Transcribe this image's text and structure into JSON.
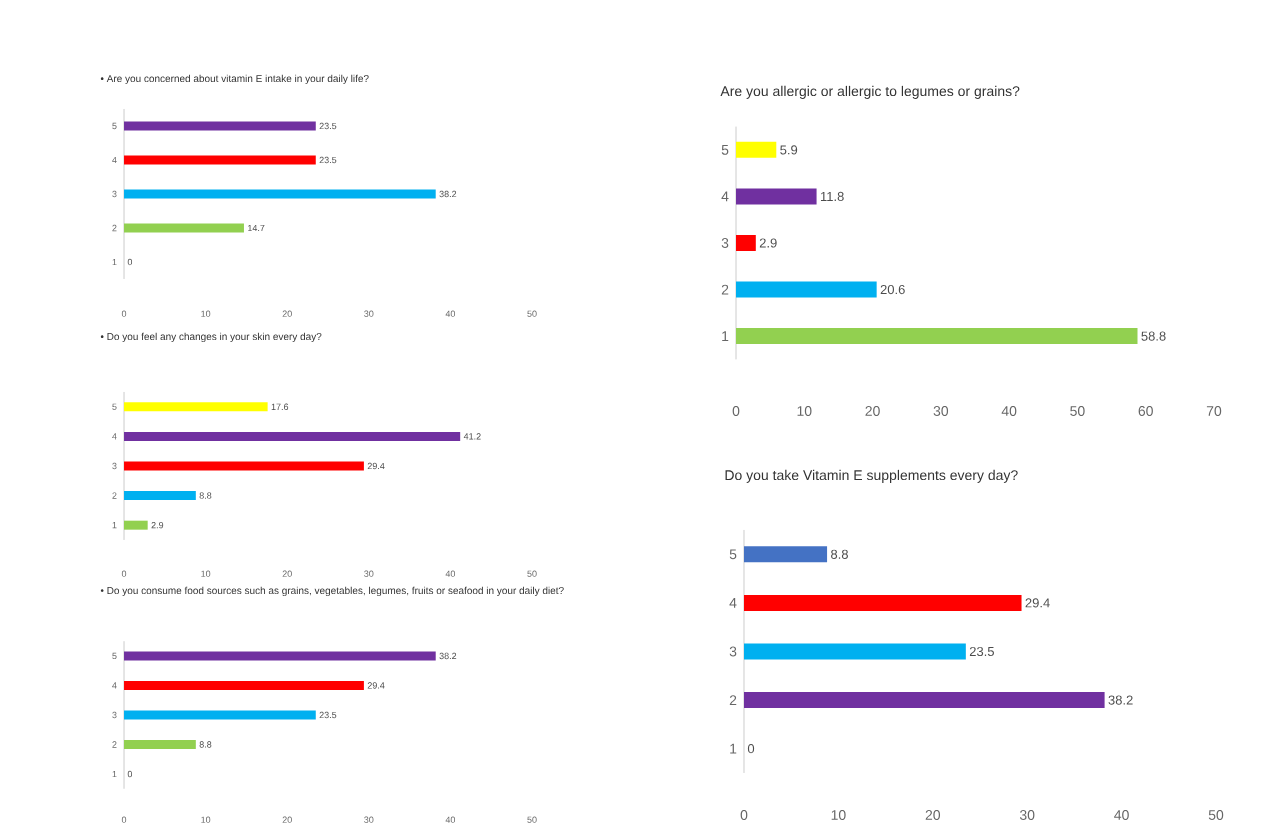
{
  "chart_data": [
    {
      "type": "bar",
      "orientation": "horizontal",
      "title": "•   Are you concerned about vitamin E intake in your daily life?",
      "categories": [
        "5",
        "4",
        "3",
        "2",
        "1"
      ],
      "values": [
        23.5,
        23.5,
        38.2,
        14.7,
        0
      ],
      "colors": [
        "#7030a0",
        "#ff0000",
        "#00b0f0",
        "#92d050",
        "#92d050"
      ],
      "xlim": [
        0,
        50
      ],
      "xticks": [
        0,
        10,
        20,
        30,
        40,
        50
      ],
      "data_labels": true
    },
    {
      "type": "bar",
      "orientation": "horizontal",
      "title": "•   Do you feel any changes in your skin every day?",
      "categories": [
        "5",
        "4",
        "3",
        "2",
        "1"
      ],
      "values": [
        17.6,
        41.2,
        29.4,
        8.8,
        2.9
      ],
      "colors": [
        "#ffff00",
        "#7030a0",
        "#ff0000",
        "#00b0f0",
        "#92d050"
      ],
      "xlim": [
        0,
        50
      ],
      "xticks": [
        0,
        10,
        20,
        30,
        40,
        50
      ],
      "data_labels": true
    },
    {
      "type": "bar",
      "orientation": "horizontal",
      "title": "•   Do you consume food sources such as grains, vegetables, legumes, fruits or seafood in your daily diet?",
      "categories": [
        "5",
        "4",
        "3",
        "2",
        "1"
      ],
      "values": [
        38.2,
        29.4,
        23.5,
        8.8,
        0
      ],
      "colors": [
        "#7030a0",
        "#ff0000",
        "#00b0f0",
        "#92d050",
        "#92d050"
      ],
      "xlim": [
        0,
        50
      ],
      "xticks": [
        0,
        10,
        20,
        30,
        40,
        50
      ],
      "data_labels": true
    },
    {
      "type": "bar",
      "orientation": "horizontal",
      "title": "Are you allergic or allergic to legumes or grains?",
      "categories": [
        "5",
        "4",
        "3",
        "2",
        "1"
      ],
      "values": [
        5.9,
        11.8,
        2.9,
        20.6,
        58.8
      ],
      "colors": [
        "#ffff00",
        "#7030a0",
        "#ff0000",
        "#00b0f0",
        "#92d050"
      ],
      "xlim": [
        0,
        70
      ],
      "xticks": [
        0,
        10,
        20,
        30,
        40,
        50,
        60,
        70
      ],
      "data_labels": true
    },
    {
      "type": "bar",
      "orientation": "horizontal",
      "title": "Do you take Vitamin E supplements every day?",
      "categories": [
        "5",
        "4",
        "3",
        "2",
        "1"
      ],
      "values": [
        8.8,
        29.4,
        23.5,
        38.2,
        0
      ],
      "colors": [
        "#4472c4",
        "#ff0000",
        "#00b0f0",
        "#7030a0",
        "#7030a0"
      ],
      "xlim": [
        0,
        50
      ],
      "xticks": [
        0,
        10,
        20,
        30,
        40,
        50
      ],
      "data_labels": true
    }
  ]
}
